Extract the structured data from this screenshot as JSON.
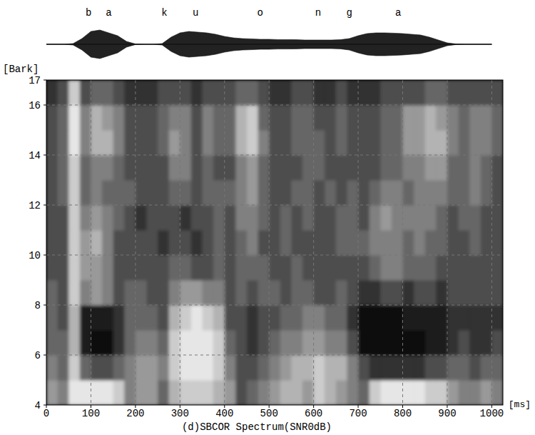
{
  "chart_data": {
    "type": "heatmap",
    "title": "(d)SBCOR Spectrum(SNR0dB)",
    "x_label": "[ms]",
    "y_label": "[Bark]",
    "xlim": [
      0,
      1025
    ],
    "ylim": [
      4,
      17
    ],
    "xticks": [
      0,
      100,
      200,
      300,
      400,
      500,
      600,
      700,
      800,
      900,
      1000
    ],
    "yticks": [
      4,
      6,
      8,
      10,
      12,
      14,
      16,
      17
    ],
    "grid": true,
    "x_bins": [
      0,
      25,
      50,
      75,
      100,
      125,
      150,
      175,
      200,
      225,
      250,
      275,
      300,
      325,
      350,
      375,
      400,
      425,
      450,
      475,
      500,
      525,
      550,
      575,
      600,
      625,
      650,
      675,
      700,
      725,
      750,
      775,
      800,
      825,
      850,
      875,
      900,
      925,
      950,
      975,
      1000,
      1025
    ],
    "y_bins": [
      4,
      5,
      6,
      7,
      8,
      9,
      10,
      11,
      12,
      13,
      14,
      15,
      16,
      17
    ],
    "values": [
      [
        0.6,
        0.5,
        0.9,
        0.9,
        0.9,
        0.9,
        0.8,
        0.5,
        0.6,
        0.6,
        0.4,
        0.7,
        0.8,
        0.8,
        0.8,
        0.7,
        0.6,
        0.3,
        0.4,
        0.5,
        0.6,
        0.7,
        0.7,
        0.6,
        0.8,
        0.7,
        0.6,
        0.5,
        0.4,
        0.8,
        0.9,
        0.9,
        0.9,
        0.9,
        0.8,
        0.8,
        0.6,
        0.5,
        0.5,
        0.6,
        0.5
      ],
      [
        0.5,
        0.4,
        0.8,
        0.4,
        0.3,
        0.3,
        0.4,
        0.5,
        0.6,
        0.6,
        0.5,
        0.8,
        0.9,
        0.9,
        0.9,
        0.8,
        0.5,
        0.3,
        0.3,
        0.4,
        0.5,
        0.6,
        0.7,
        0.7,
        0.8,
        0.7,
        0.7,
        0.5,
        0.3,
        0.2,
        0.2,
        0.2,
        0.2,
        0.2,
        0.3,
        0.3,
        0.4,
        0.4,
        0.3,
        0.4,
        0.4
      ],
      [
        0.4,
        0.4,
        0.7,
        0.1,
        0.05,
        0.05,
        0.2,
        0.4,
        0.5,
        0.5,
        0.4,
        0.8,
        0.9,
        0.9,
        0.9,
        0.8,
        0.4,
        0.3,
        0.2,
        0.3,
        0.4,
        0.5,
        0.5,
        0.6,
        0.6,
        0.5,
        0.5,
        0.3,
        0.05,
        0.05,
        0.05,
        0.05,
        0.05,
        0.05,
        0.1,
        0.1,
        0.2,
        0.3,
        0.2,
        0.2,
        0.3
      ],
      [
        0.4,
        0.3,
        0.7,
        0.1,
        0.1,
        0.1,
        0.2,
        0.4,
        0.4,
        0.4,
        0.3,
        0.7,
        0.8,
        0.9,
        0.8,
        0.7,
        0.3,
        0.3,
        0.2,
        0.3,
        0.3,
        0.4,
        0.4,
        0.5,
        0.5,
        0.4,
        0.4,
        0.2,
        0.05,
        0.05,
        0.05,
        0.05,
        0.1,
        0.1,
        0.1,
        0.1,
        0.2,
        0.2,
        0.2,
        0.2,
        0.2
      ],
      [
        0.4,
        0.3,
        0.8,
        0.5,
        0.6,
        0.5,
        0.3,
        0.4,
        0.4,
        0.3,
        0.3,
        0.5,
        0.6,
        0.6,
        0.5,
        0.5,
        0.3,
        0.4,
        0.3,
        0.4,
        0.4,
        0.3,
        0.4,
        0.4,
        0.3,
        0.3,
        0.4,
        0.3,
        0.2,
        0.2,
        0.3,
        0.3,
        0.2,
        0.3,
        0.3,
        0.2,
        0.3,
        0.3,
        0.3,
        0.3,
        0.3
      ],
      [
        0.3,
        0.3,
        0.8,
        0.6,
        0.6,
        0.5,
        0.3,
        0.3,
        0.3,
        0.3,
        0.3,
        0.4,
        0.4,
        0.3,
        0.3,
        0.4,
        0.3,
        0.4,
        0.4,
        0.4,
        0.3,
        0.3,
        0.4,
        0.3,
        0.3,
        0.3,
        0.3,
        0.3,
        0.3,
        0.4,
        0.5,
        0.5,
        0.4,
        0.4,
        0.4,
        0.3,
        0.3,
        0.3,
        0.3,
        0.3,
        0.3
      ],
      [
        0.3,
        0.3,
        0.8,
        0.6,
        0.7,
        0.5,
        0.3,
        0.3,
        0.3,
        0.3,
        0.2,
        0.3,
        0.3,
        0.2,
        0.3,
        0.4,
        0.3,
        0.4,
        0.5,
        0.3,
        0.3,
        0.4,
        0.3,
        0.3,
        0.3,
        0.3,
        0.4,
        0.4,
        0.4,
        0.5,
        0.5,
        0.5,
        0.4,
        0.5,
        0.4,
        0.4,
        0.3,
        0.3,
        0.4,
        0.3,
        0.3
      ],
      [
        0.3,
        0.3,
        0.8,
        0.5,
        0.6,
        0.5,
        0.4,
        0.3,
        0.2,
        0.3,
        0.3,
        0.3,
        0.2,
        0.3,
        0.3,
        0.4,
        0.3,
        0.5,
        0.5,
        0.4,
        0.3,
        0.4,
        0.3,
        0.4,
        0.3,
        0.3,
        0.4,
        0.4,
        0.3,
        0.5,
        0.6,
        0.5,
        0.5,
        0.5,
        0.5,
        0.4,
        0.3,
        0.4,
        0.4,
        0.3,
        0.3
      ],
      [
        0.3,
        0.4,
        0.8,
        0.4,
        0.5,
        0.4,
        0.4,
        0.4,
        0.3,
        0.3,
        0.3,
        0.4,
        0.4,
        0.3,
        0.4,
        0.4,
        0.4,
        0.5,
        0.6,
        0.4,
        0.3,
        0.3,
        0.4,
        0.4,
        0.3,
        0.4,
        0.3,
        0.4,
        0.3,
        0.4,
        0.5,
        0.5,
        0.4,
        0.5,
        0.5,
        0.5,
        0.4,
        0.4,
        0.5,
        0.4,
        0.3
      ],
      [
        0.3,
        0.4,
        0.8,
        0.4,
        0.5,
        0.5,
        0.4,
        0.3,
        0.3,
        0.3,
        0.3,
        0.5,
        0.5,
        0.3,
        0.4,
        0.3,
        0.3,
        0.5,
        0.6,
        0.4,
        0.3,
        0.3,
        0.3,
        0.4,
        0.4,
        0.3,
        0.3,
        0.3,
        0.3,
        0.3,
        0.4,
        0.4,
        0.5,
        0.5,
        0.6,
        0.6,
        0.4,
        0.4,
        0.5,
        0.4,
        0.3
      ],
      [
        0.3,
        0.4,
        0.9,
        0.5,
        0.7,
        0.7,
        0.5,
        0.3,
        0.3,
        0.3,
        0.4,
        0.6,
        0.5,
        0.3,
        0.5,
        0.4,
        0.4,
        0.7,
        0.8,
        0.5,
        0.3,
        0.3,
        0.4,
        0.4,
        0.4,
        0.3,
        0.4,
        0.3,
        0.3,
        0.3,
        0.4,
        0.4,
        0.6,
        0.6,
        0.7,
        0.7,
        0.5,
        0.4,
        0.5,
        0.5,
        0.4
      ],
      [
        0.3,
        0.4,
        0.9,
        0.5,
        0.7,
        0.6,
        0.5,
        0.3,
        0.3,
        0.3,
        0.4,
        0.5,
        0.5,
        0.3,
        0.5,
        0.4,
        0.4,
        0.7,
        0.8,
        0.4,
        0.3,
        0.3,
        0.4,
        0.4,
        0.3,
        0.3,
        0.4,
        0.3,
        0.3,
        0.3,
        0.4,
        0.4,
        0.6,
        0.6,
        0.7,
        0.6,
        0.5,
        0.4,
        0.5,
        0.5,
        0.4
      ],
      [
        0.2,
        0.3,
        0.8,
        0.3,
        0.4,
        0.4,
        0.3,
        0.2,
        0.2,
        0.2,
        0.3,
        0.3,
        0.3,
        0.2,
        0.3,
        0.3,
        0.3,
        0.4,
        0.4,
        0.3,
        0.2,
        0.2,
        0.3,
        0.3,
        0.2,
        0.2,
        0.3,
        0.2,
        0.2,
        0.2,
        0.3,
        0.3,
        0.3,
        0.3,
        0.4,
        0.4,
        0.3,
        0.3,
        0.3,
        0.3,
        0.3
      ]
    ],
    "waveform": {
      "x": [
        0,
        20,
        40,
        60,
        80,
        100,
        120,
        140,
        160,
        180,
        200,
        220,
        240,
        260,
        280,
        300,
        320,
        340,
        360,
        380,
        400,
        420,
        440,
        460,
        480,
        500,
        520,
        540,
        560,
        580,
        600,
        620,
        640,
        660,
        680,
        700,
        720,
        740,
        760,
        780,
        800,
        820,
        840,
        860,
        880,
        900,
        920,
        940,
        960,
        980,
        1000
      ],
      "values": [
        0,
        0,
        0,
        0.05,
        0.4,
        0.9,
        1.0,
        0.8,
        0.6,
        0.2,
        0.02,
        0,
        0,
        0.05,
        0.5,
        0.8,
        0.9,
        0.85,
        0.8,
        0.7,
        0.55,
        0.45,
        0.4,
        0.38,
        0.35,
        0.35,
        0.33,
        0.33,
        0.32,
        0.3,
        0.3,
        0.3,
        0.3,
        0.32,
        0.4,
        0.6,
        0.75,
        0.8,
        0.8,
        0.78,
        0.75,
        0.7,
        0.65,
        0.5,
        0.3,
        0.1,
        0.02,
        0,
        0,
        0,
        0
      ]
    },
    "annotations": [
      {
        "text": "b",
        "x": 95
      },
      {
        "text": "a",
        "x": 140
      },
      {
        "text": "k",
        "x": 265
      },
      {
        "text": "u",
        "x": 335
      },
      {
        "text": "o",
        "x": 480
      },
      {
        "text": "n",
        "x": 610
      },
      {
        "text": "g",
        "x": 680
      },
      {
        "text": "a",
        "x": 790
      }
    ]
  }
}
